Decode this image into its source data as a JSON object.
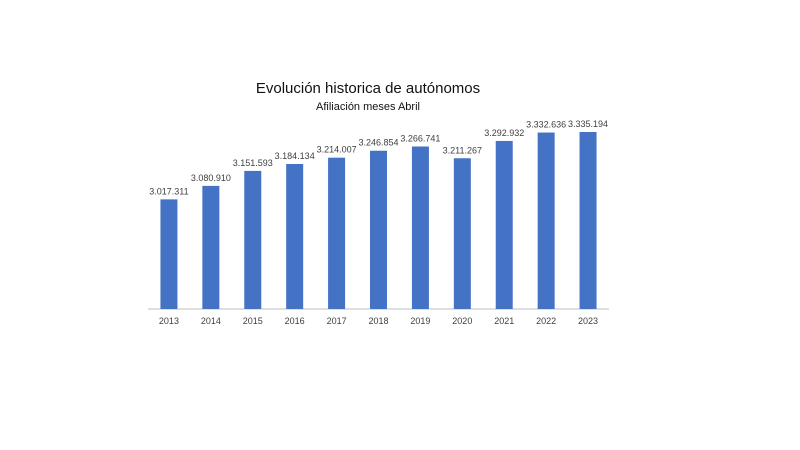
{
  "chart_data": {
    "type": "bar",
    "title": "Evolución historica de autónomos",
    "subtitle": "Afiliación meses Abril",
    "xlabel": "",
    "ylabel": "",
    "categories": [
      "2013",
      "2014",
      "2015",
      "2016",
      "2017",
      "2018",
      "2019",
      "2020",
      "2021",
      "2022",
      "2023"
    ],
    "values": [
      3017311,
      3080910,
      3151593,
      3184134,
      3214007,
      3246854,
      3266741,
      3211267,
      3292932,
      3332636,
      3335194
    ],
    "value_labels": [
      "3.017.311",
      "3.080.910",
      "3.151.593",
      "3.184.134",
      "3.214.007",
      "3.246.854",
      "3.266.741",
      "3.211.267",
      "3.292.932",
      "3.332.636",
      "3.335.194"
    ],
    "ylim": [
      2500000,
      3400000
    ],
    "grid": false,
    "legend": "none",
    "bar_color": "#4472c4"
  }
}
